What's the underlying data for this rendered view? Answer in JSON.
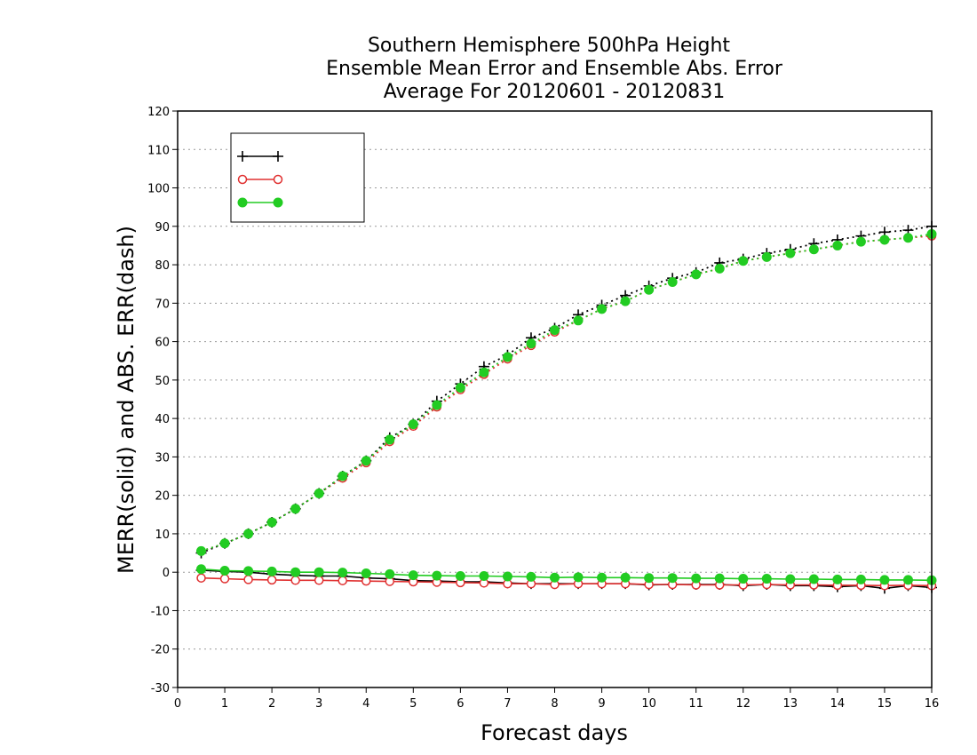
{
  "chart_data": {
    "type": "line",
    "title": [
      "Southern Hemisphere 500hPa Height",
      "Ensemble Mean Error and Ensemble Abs. Error",
      "Average For 20120601 - 20120831"
    ],
    "xlabel": "Forecast days",
    "ylabel": "MERR(solid) and ABS. ERR(dash)",
    "xlim": [
      0,
      16
    ],
    "ylim": [
      -30,
      120
    ],
    "xticks": [
      0,
      1,
      2,
      3,
      4,
      5,
      6,
      7,
      8,
      9,
      10,
      11,
      12,
      13,
      14,
      15,
      16
    ],
    "yticks": [
      -30,
      -20,
      -10,
      0,
      10,
      20,
      30,
      40,
      50,
      60,
      70,
      80,
      90,
      100,
      110,
      120
    ],
    "grid": "horizontal dotted",
    "legend_position": "top-left",
    "x": [
      0.5,
      1,
      1.5,
      2,
      2.5,
      3,
      3.5,
      4,
      4.5,
      5,
      5.5,
      6,
      6.5,
      7,
      7.5,
      8,
      8.5,
      9,
      9.5,
      10,
      10.5,
      11,
      11.5,
      12,
      12.5,
      13,
      13.5,
      14,
      14.5,
      15,
      15.5,
      16
    ],
    "series": [
      {
        "name": "",
        "color": "#000000",
        "marker": "plus",
        "mean_error": [
          0.5,
          0.2,
          0,
          -0.5,
          -0.8,
          -1,
          -1,
          -1.5,
          -1.7,
          -2.2,
          -2.3,
          -2.5,
          -2.5,
          -2.8,
          -3,
          -3,
          -3,
          -3,
          -3,
          -3.3,
          -3.2,
          -3.2,
          -3.2,
          -3.5,
          -3.2,
          -3.5,
          -3.5,
          -3.8,
          -3.5,
          -4.2,
          -3.5,
          -4
        ],
        "abs_error": [
          5,
          7.5,
          10,
          13,
          16.5,
          20.5,
          25,
          29,
          35,
          38.5,
          44.5,
          49,
          53.5,
          56.5,
          61,
          63.5,
          67,
          69.5,
          72,
          74.5,
          76.5,
          78,
          80.5,
          81.5,
          83,
          84,
          85.5,
          86.5,
          87.5,
          88.5,
          89,
          90
        ]
      },
      {
        "name": "",
        "color": "#e03030",
        "marker": "open-circle",
        "mean_error": [
          -1.5,
          -1.7,
          -1.9,
          -2,
          -2.1,
          -2.1,
          -2.2,
          -2.3,
          -2.4,
          -2.5,
          -2.6,
          -2.7,
          -2.8,
          -3,
          -3,
          -3.2,
          -3,
          -3,
          -3,
          -3.2,
          -3.2,
          -3.3,
          -3.3,
          -3.3,
          -3.2,
          -3.3,
          -3.3,
          -3.4,
          -3.4,
          -3.5,
          -3.4,
          -3.5
        ],
        "abs_error": [
          5.5,
          7.5,
          10,
          13,
          16.5,
          20.5,
          24.5,
          28.5,
          34,
          38,
          43,
          47.5,
          51.5,
          55.5,
          59,
          62.5,
          65.5,
          68.5,
          70.5,
          73.5,
          75.5,
          77.5,
          79,
          81,
          82,
          83,
          84,
          85,
          86,
          86.5,
          87,
          87.5
        ]
      },
      {
        "name": "",
        "color": "#22cc22",
        "marker": "filled-circle",
        "mean_error": [
          0.8,
          0.4,
          0.3,
          0.2,
          0,
          0,
          -0.1,
          -0.3,
          -0.5,
          -0.8,
          -0.9,
          -1,
          -1,
          -1.1,
          -1.2,
          -1.4,
          -1.3,
          -1.4,
          -1.4,
          -1.5,
          -1.5,
          -1.6,
          -1.6,
          -1.7,
          -1.7,
          -1.8,
          -1.8,
          -1.9,
          -1.9,
          -2,
          -2,
          -2.1
        ],
        "abs_error": [
          5.5,
          7.5,
          10,
          13,
          16.5,
          20.5,
          25,
          29,
          34.5,
          38.5,
          43.5,
          48,
          52,
          56,
          59.5,
          63,
          65.5,
          68.5,
          70.5,
          73.5,
          75.5,
          77.5,
          79,
          81,
          82,
          83,
          84,
          85,
          86,
          86.5,
          87,
          88
        ]
      }
    ]
  }
}
